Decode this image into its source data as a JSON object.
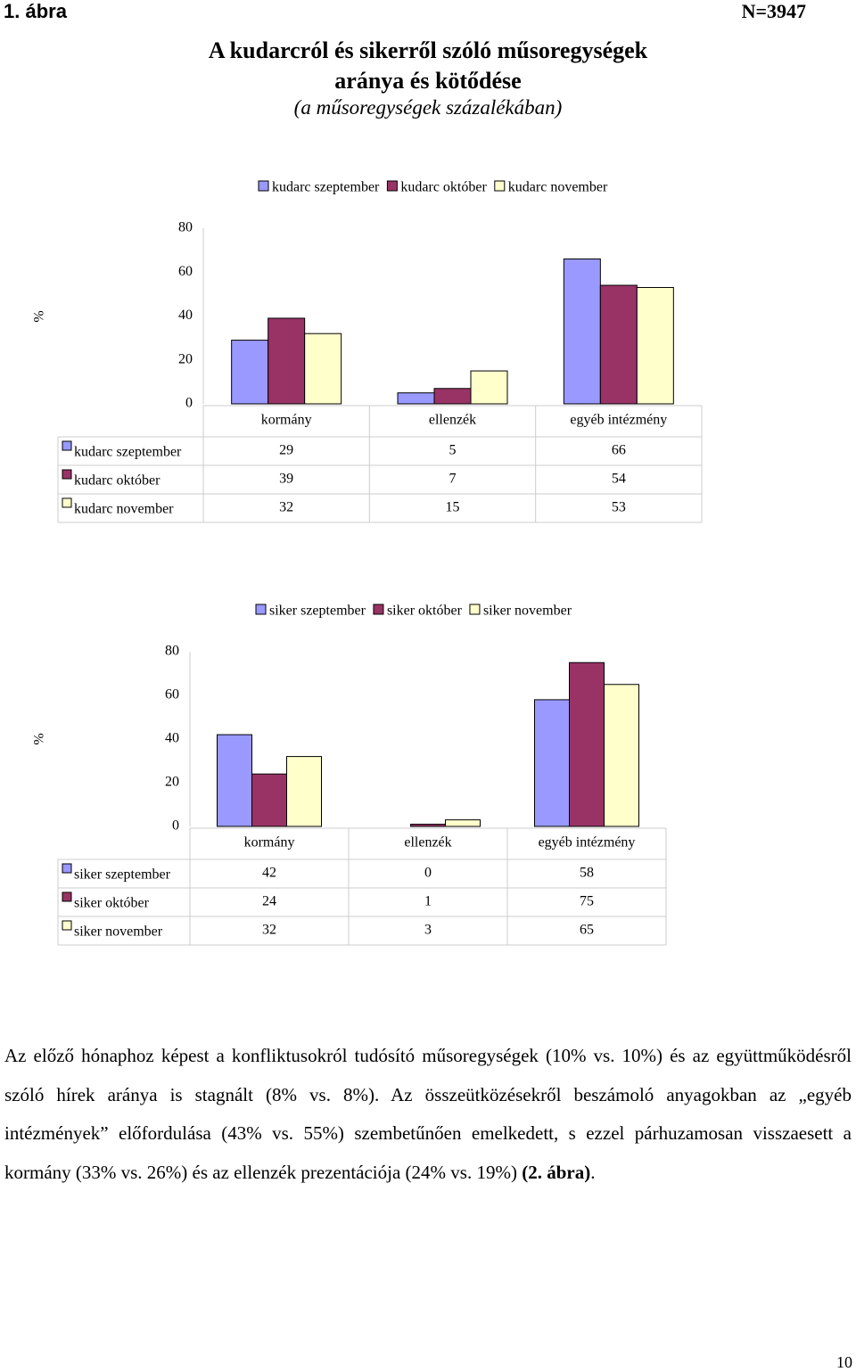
{
  "header": {
    "figure": "1. ábra",
    "sample": "N=3947"
  },
  "title": {
    "line1": "A kudarcról és sikerről szóló műsoregységek",
    "line2": "aránya és kötődése",
    "subtitle": "(a műsoregységek százalékában)"
  },
  "chart_data": [
    {
      "type": "bar",
      "y_label": "%",
      "categories": [
        "kormány",
        "ellenzék",
        "egyéb intézmény"
      ],
      "series": [
        {
          "name": "kudarc szeptember",
          "color": "#9999ff",
          "values": [
            29,
            5,
            66
          ]
        },
        {
          "name": "kudarc október",
          "color": "#993366",
          "values": [
            39,
            7,
            54
          ]
        },
        {
          "name": "kudarc november",
          "color": "#ffffcc",
          "values": [
            32,
            15,
            53
          ]
        }
      ],
      "ylim": [
        0,
        80
      ],
      "yticks": [
        0,
        20,
        40,
        60,
        80
      ],
      "legend": "top",
      "data_table": true
    },
    {
      "type": "bar",
      "y_label": "%",
      "categories": [
        "kormány",
        "ellenzék",
        "egyéb intézmény"
      ],
      "series": [
        {
          "name": "siker szeptember",
          "color": "#9999ff",
          "values": [
            42,
            0,
            58
          ]
        },
        {
          "name": "siker október",
          "color": "#993366",
          "values": [
            24,
            1,
            75
          ]
        },
        {
          "name": "siker november",
          "color": "#ffffcc",
          "values": [
            32,
            3,
            65
          ]
        }
      ],
      "ylim": [
        0,
        80
      ],
      "yticks": [
        0,
        20,
        40,
        60,
        80
      ],
      "legend": "top",
      "data_table": true
    }
  ],
  "paragraph": {
    "text": "Az előző hónaphoz képest a konfliktusokról tudósító műsoregységek (10% vs. 10%) és az együttműködésről szóló hírek aránya is stagnált (8% vs. 8%). Az összeütközésekről beszámoló anyagokban az „egyéb intézmények” előfordulása (43% vs. 55%) szembetűnően emelkedett, s ezzel párhuzamosan visszaesett a kormány (33% vs. 26%) és az ellenzék prezentációja (24% vs. 19%) ",
    "bold": "(2. ábra)",
    "end": "."
  },
  "page_number": "10"
}
